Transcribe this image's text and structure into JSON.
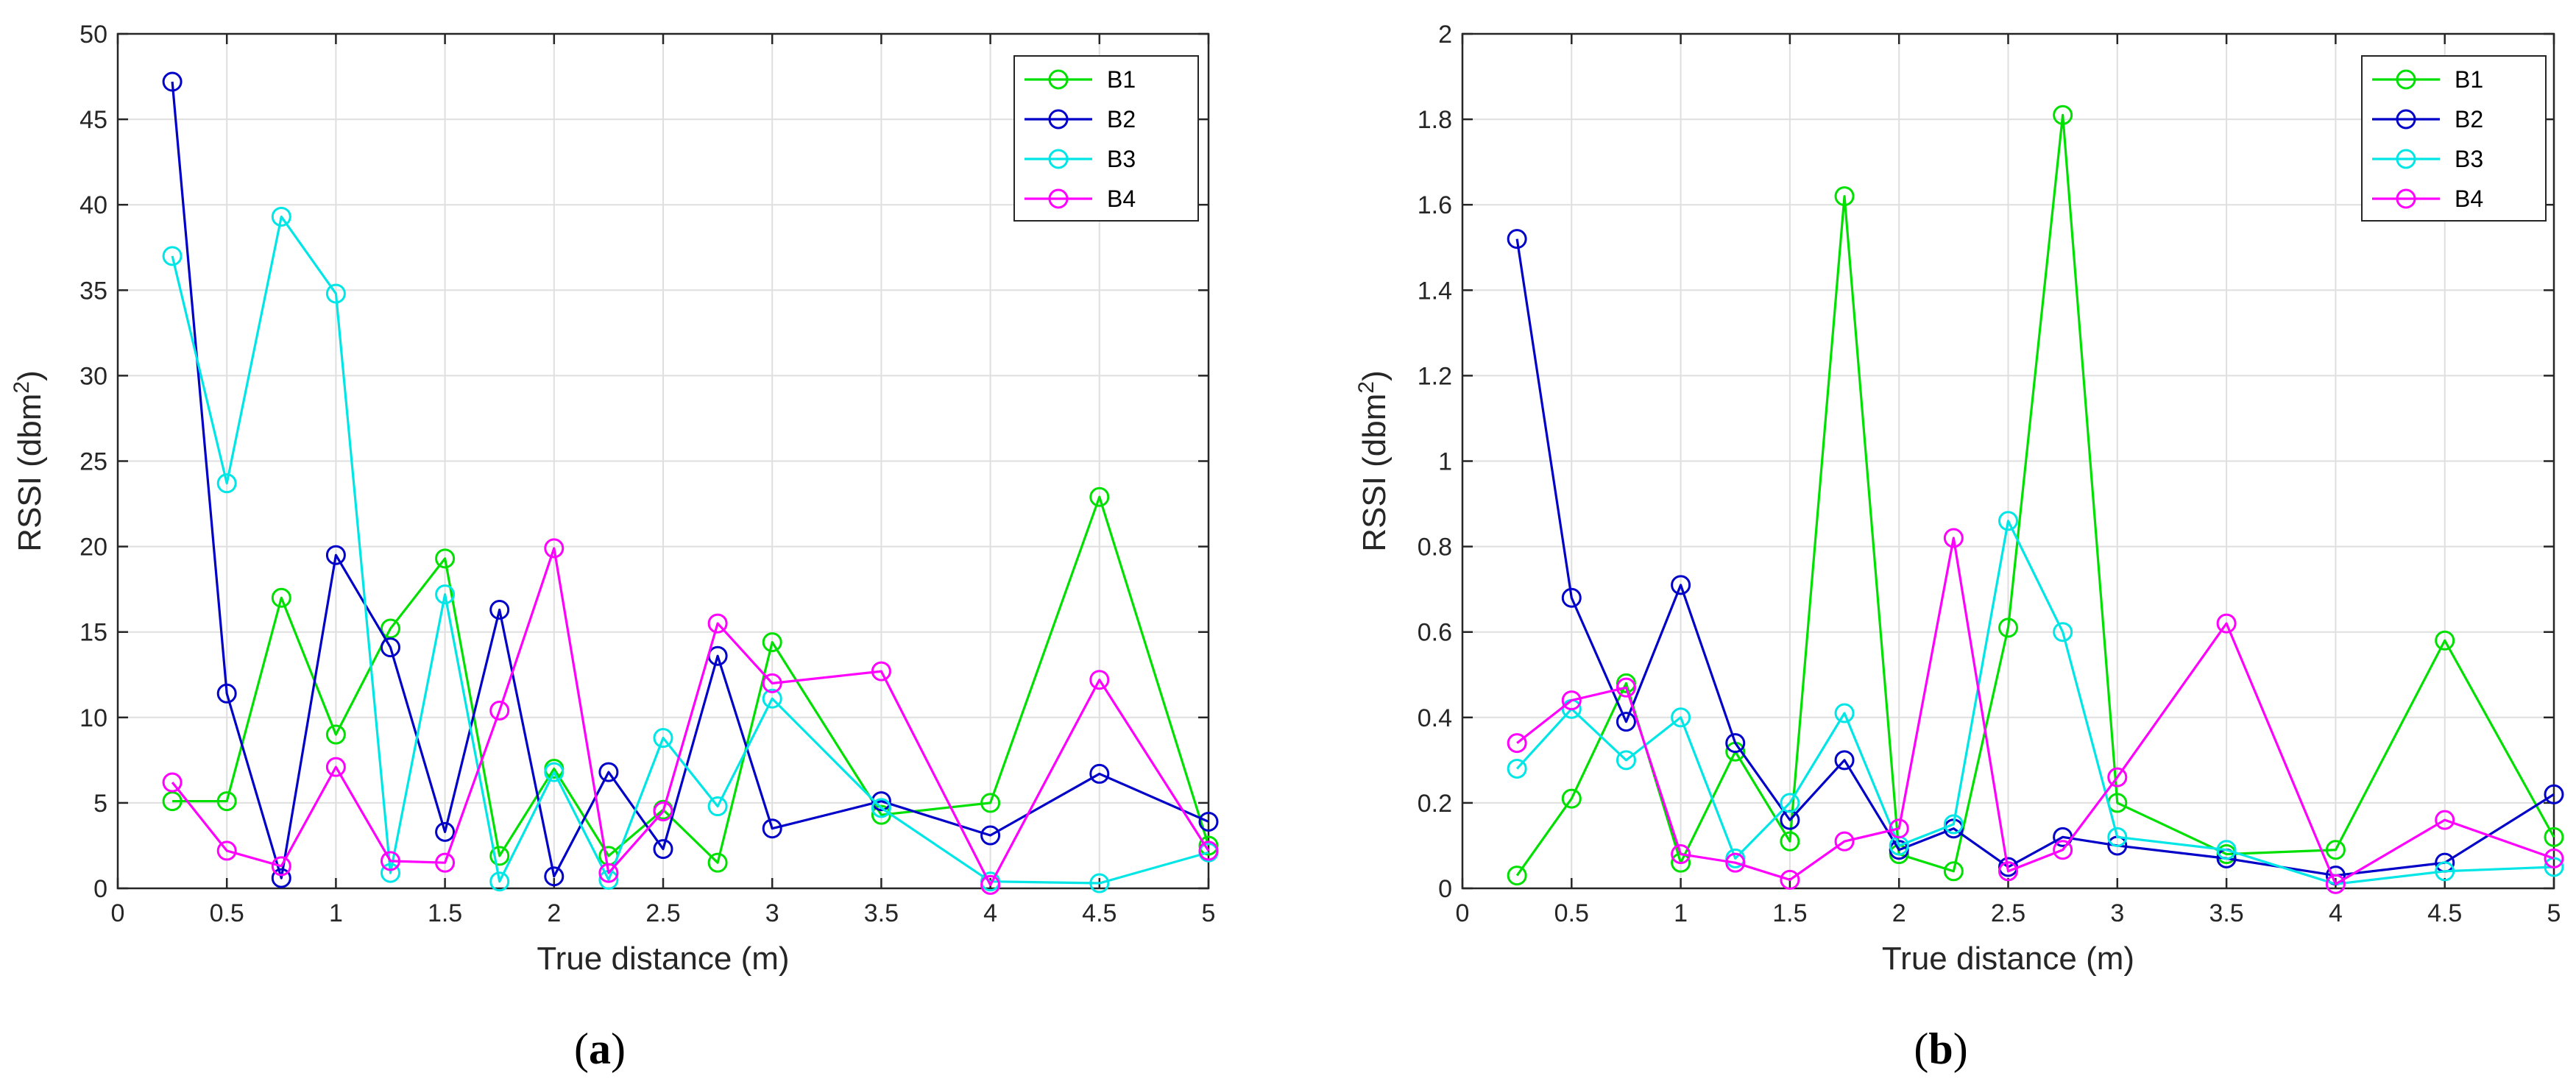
{
  "chart_data": [
    {
      "type": "line",
      "panel_label": "a",
      "xlabel": "True distance (m)",
      "ylabel": "RSSI (dbm",
      "ylabel_sup": "2",
      "ylabel_close": ")",
      "xlim": [
        0,
        5
      ],
      "ylim": [
        0,
        50
      ],
      "xticks": [
        0,
        0.5,
        1,
        1.5,
        2,
        2.5,
        3,
        3.5,
        4,
        4.5,
        5
      ],
      "xtick_labels": [
        "0",
        "0.5",
        "1",
        "1.5",
        "2",
        "2.5",
        "3",
        "3.5",
        "4",
        "4.5",
        "5"
      ],
      "yticks": [
        0,
        5,
        10,
        15,
        20,
        25,
        30,
        35,
        40,
        45,
        50
      ],
      "ytick_labels": [
        "0",
        "5",
        "10",
        "15",
        "20",
        "25",
        "30",
        "35",
        "40",
        "45",
        "50"
      ],
      "grid": true,
      "legend_position": "top-right",
      "x": [
        0.25,
        0.5,
        0.75,
        1,
        1.25,
        1.5,
        1.75,
        2,
        2.25,
        2.5,
        2.75,
        3,
        3.5,
        4,
        4.5,
        5
      ],
      "series": [
        {
          "name": "B1",
          "color": "#00e000",
          "values": [
            5.1,
            5.1,
            17.0,
            9.0,
            15.2,
            19.3,
            1.9,
            7.0,
            1.9,
            4.6,
            1.5,
            14.4,
            4.3,
            5.0,
            22.9,
            2.5
          ]
        },
        {
          "name": "B2",
          "color": "#0000c8",
          "values": [
            47.2,
            11.4,
            0.6,
            19.5,
            14.1,
            3.3,
            16.3,
            0.7,
            6.8,
            2.3,
            13.6,
            3.5,
            5.1,
            3.1,
            6.7,
            3.9
          ]
        },
        {
          "name": "B3",
          "color": "#00e6e6",
          "values": [
            37.0,
            23.7,
            39.3,
            34.8,
            0.9,
            17.2,
            0.4,
            6.8,
            0.5,
            8.8,
            4.8,
            11.1,
            4.7,
            0.4,
            0.3,
            2.1
          ]
        },
        {
          "name": "B4",
          "color": "#ff00ff",
          "values": [
            6.2,
            2.2,
            1.3,
            7.1,
            1.6,
            1.5,
            10.4,
            19.9,
            0.9,
            4.5,
            15.5,
            12.0,
            12.7,
            0.2,
            12.2,
            2.2
          ]
        }
      ]
    },
    {
      "type": "line",
      "panel_label": "b",
      "xlabel": "True distance (m)",
      "ylabel": "RSSI (dbm",
      "ylabel_sup": "2",
      "ylabel_close": ")",
      "xlim": [
        0,
        5
      ],
      "ylim": [
        0,
        2
      ],
      "xticks": [
        0,
        0.5,
        1,
        1.5,
        2,
        2.5,
        3,
        3.5,
        4,
        4.5,
        5
      ],
      "xtick_labels": [
        "0",
        "0.5",
        "1",
        "1.5",
        "2",
        "2.5",
        "3",
        "3.5",
        "4",
        "4.5",
        "5"
      ],
      "yticks": [
        0,
        0.2,
        0.4,
        0.6,
        0.8,
        1,
        1.2,
        1.4,
        1.6,
        1.8,
        2
      ],
      "ytick_labels": [
        "0",
        "0.2",
        "0.4",
        "0.6",
        "0.8",
        "1",
        "1.2",
        "1.4",
        "1.6",
        "1.8",
        "2"
      ],
      "grid": true,
      "legend_position": "top-right",
      "x": [
        0.25,
        0.5,
        0.75,
        1,
        1.25,
        1.5,
        1.75,
        2,
        2.25,
        2.5,
        2.75,
        3,
        3.5,
        4,
        4.5,
        5
      ],
      "series": [
        {
          "name": "B1",
          "color": "#00e000",
          "values": [
            0.03,
            0.21,
            0.48,
            0.06,
            0.32,
            0.11,
            1.62,
            0.08,
            0.04,
            0.61,
            1.81,
            0.2,
            0.08,
            0.09,
            0.58,
            0.12
          ]
        },
        {
          "name": "B2",
          "color": "#0000c8",
          "values": [
            1.52,
            0.68,
            0.39,
            0.71,
            0.34,
            0.16,
            0.3,
            0.09,
            0.14,
            0.05,
            0.12,
            0.1,
            0.07,
            0.03,
            0.06,
            0.22
          ]
        },
        {
          "name": "B3",
          "color": "#00e6e6",
          "values": [
            0.28,
            0.42,
            0.3,
            0.4,
            0.07,
            0.2,
            0.41,
            0.1,
            0.15,
            0.86,
            0.6,
            0.12,
            0.09,
            0.01,
            0.04,
            0.05
          ]
        },
        {
          "name": "B4",
          "color": "#ff00ff",
          "values": [
            0.34,
            0.44,
            0.47,
            0.08,
            0.06,
            0.02,
            0.11,
            0.14,
            0.82,
            0.04,
            0.09,
            0.26,
            0.62,
            0.01,
            0.16,
            0.07
          ]
        }
      ]
    }
  ]
}
